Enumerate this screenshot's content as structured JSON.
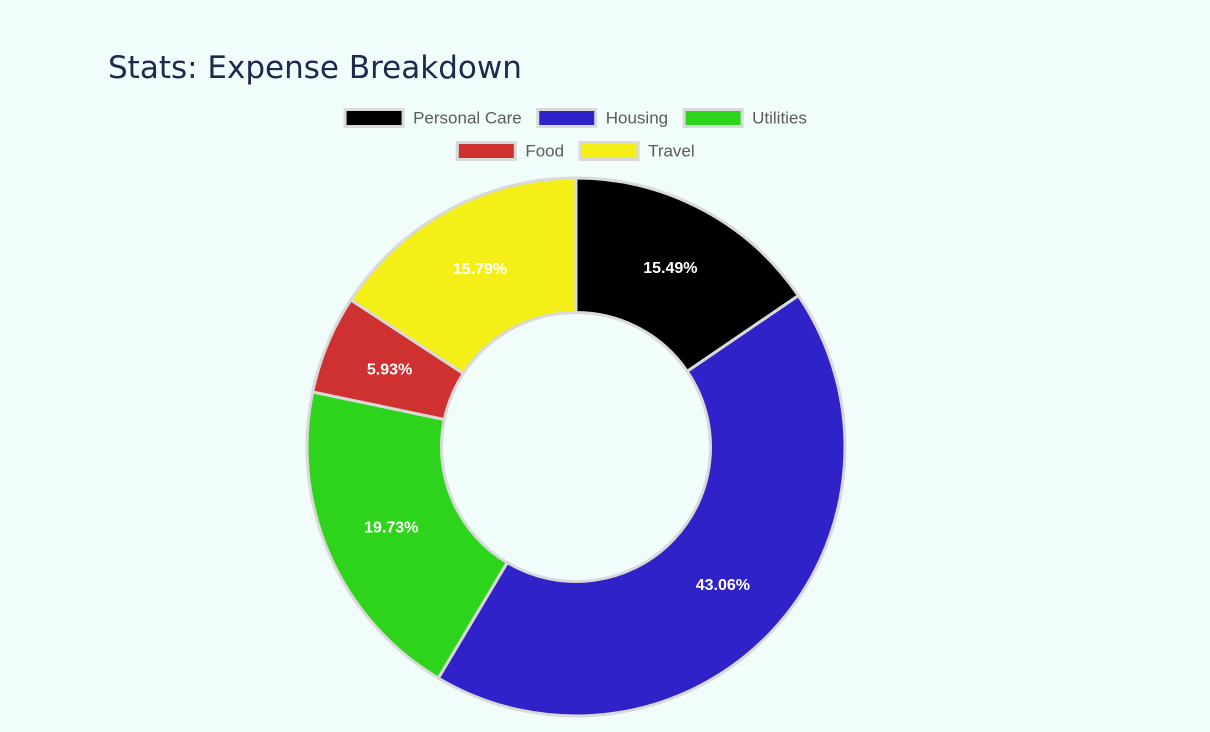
{
  "chart_data": {
    "type": "pie",
    "title": "Stats: Expense Breakdown",
    "hole": 0.5,
    "legend_position": "top",
    "slices": [
      {
        "label": "Personal Care",
        "value": 15.49,
        "display": "15.49%",
        "color": "#000000"
      },
      {
        "label": "Housing",
        "value": 43.06,
        "display": "43.06%",
        "color": "#2f22c9"
      },
      {
        "label": "Utilities",
        "value": 19.73,
        "display": "19.73%",
        "color": "#2ed41b"
      },
      {
        "label": "Food",
        "value": 5.93,
        "display": "5.93%",
        "color": "#cf3131"
      },
      {
        "label": "Travel",
        "value": 15.79,
        "display": "15.79%",
        "color": "#f5ef18"
      }
    ]
  },
  "colors": {
    "background": "#f0fdfa",
    "slice_border": "#d9d9d9",
    "title": "#1b2a4e",
    "legend_text": "#5b5b5b"
  }
}
